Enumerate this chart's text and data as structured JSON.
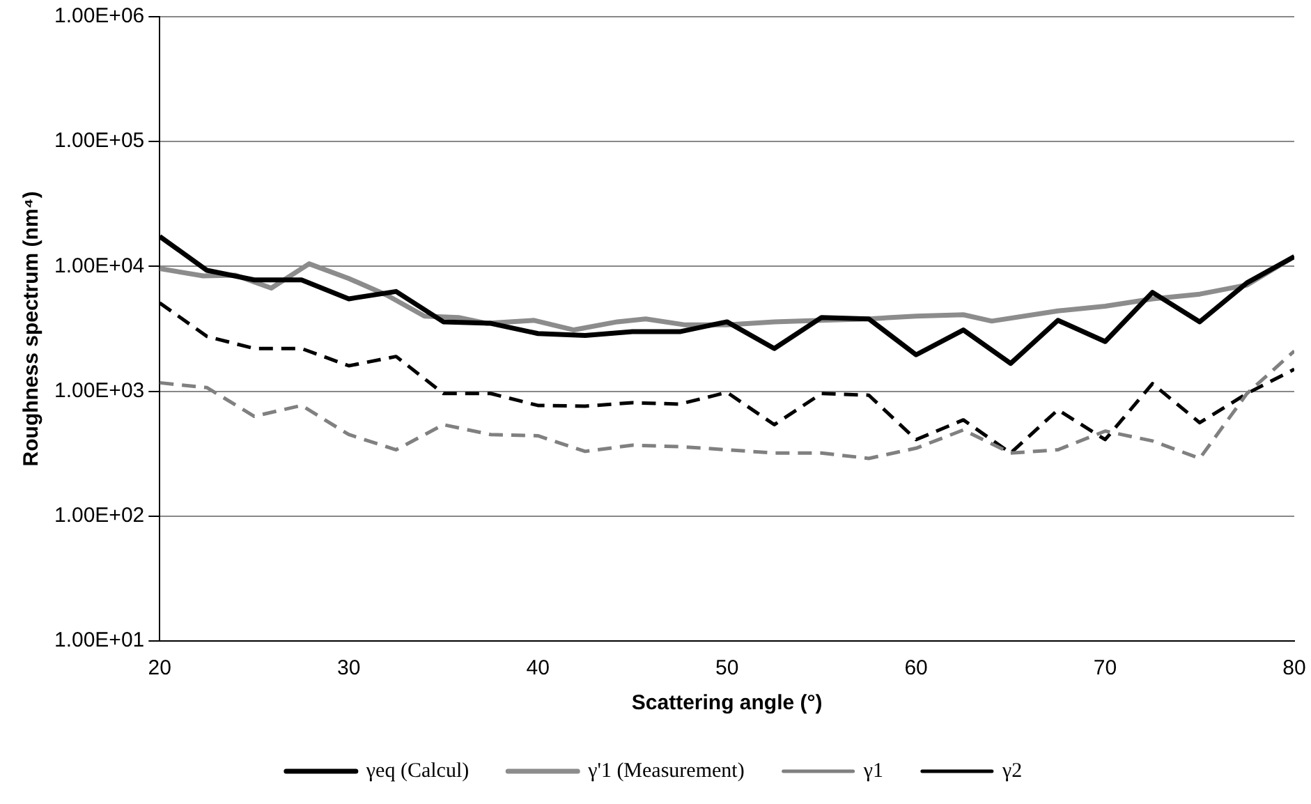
{
  "chart_data": {
    "type": "line",
    "xlabel": "Scattering angle (°)",
    "ylabel": "Roughness spectrum (nm⁴)",
    "log": "y",
    "grid": "y",
    "legend": "bottom",
    "marker": "none",
    "xlim": [
      20,
      80
    ],
    "xticks": [
      20,
      30,
      40,
      50,
      60,
      70,
      80
    ],
    "ylim": [
      10,
      1000000
    ],
    "yticks": [
      {
        "value": 10,
        "label": "1.00E+01"
      },
      {
        "value": 100,
        "label": "1.00E+02"
      },
      {
        "value": 1000,
        "label": "1.00E+03"
      },
      {
        "value": 10000,
        "label": "1.00E+04"
      },
      {
        "value": 100000,
        "label": "1.00E+05"
      },
      {
        "value": 1000000,
        "label": "1.00E+06"
      }
    ],
    "series": [
      {
        "name": "γeq (Calcul)",
        "color": "#000000",
        "line_style": "solid",
        "x": [
          20,
          22.5,
          25,
          27.5,
          30,
          32.5,
          35,
          37.5,
          40,
          42.5,
          45,
          47.5,
          50,
          52.5,
          55,
          57.5,
          60,
          62.5,
          65,
          67.5,
          70,
          72.5,
          75,
          77.5,
          80
        ],
        "values": [
          17400,
          9300,
          7800,
          7800,
          5500,
          6300,
          3600,
          3500,
          2900,
          2800,
          3000,
          3000,
          3600,
          2200,
          3900,
          3800,
          1960,
          3100,
          1670,
          3700,
          2500,
          6200,
          3600,
          7400,
          12000
        ]
      },
      {
        "name": "γ'1 (Measurement)",
        "color": "#8c8c8c",
        "line_style": "solid",
        "x": [
          20,
          22.3,
          24,
          25.9,
          27.9,
          30,
          32,
          34,
          35.8,
          37.3,
          39.8,
          41.9,
          44.2,
          45.7,
          47.8,
          50,
          52.5,
          55,
          57.5,
          60,
          62.5,
          64,
          67.5,
          70,
          72.5,
          75,
          77.5,
          80
        ],
        "values": [
          9600,
          8400,
          8500,
          6700,
          10500,
          8000,
          5900,
          4000,
          3900,
          3500,
          3700,
          3100,
          3600,
          3800,
          3400,
          3400,
          3600,
          3700,
          3800,
          4000,
          4100,
          3650,
          4400,
          4800,
          5500,
          6000,
          7100,
          12000
        ]
      },
      {
        "name": "γ1",
        "color": "#808080",
        "line_style": "dashed",
        "x": [
          20,
          22.5,
          25,
          27.5,
          30,
          32.5,
          35,
          37.5,
          40,
          42.5,
          45,
          47.5,
          50,
          52.5,
          55,
          57.5,
          60,
          62.5,
          65,
          67.5,
          70,
          72.5,
          75,
          77.5,
          80
        ],
        "values": [
          1170,
          1070,
          630,
          770,
          450,
          340,
          540,
          450,
          440,
          330,
          370,
          360,
          340,
          320,
          320,
          290,
          350,
          490,
          320,
          340,
          480,
          400,
          290,
          960,
          2100
        ]
      },
      {
        "name": "γ2",
        "color": "#000000",
        "line_style": "dashed",
        "x": [
          20,
          22.5,
          25,
          27.5,
          30,
          32.5,
          35,
          37.5,
          40,
          42.5,
          45,
          47.5,
          50,
          52.5,
          55,
          57.5,
          60,
          62.5,
          65,
          67.5,
          70,
          72.5,
          75,
          77.5,
          80
        ],
        "values": [
          5100,
          2750,
          2200,
          2200,
          1600,
          1900,
          960,
          960,
          770,
          760,
          810,
          790,
          980,
          540,
          960,
          930,
          410,
          590,
          320,
          710,
          410,
          1150,
          560,
          960,
          1500
        ]
      }
    ]
  }
}
